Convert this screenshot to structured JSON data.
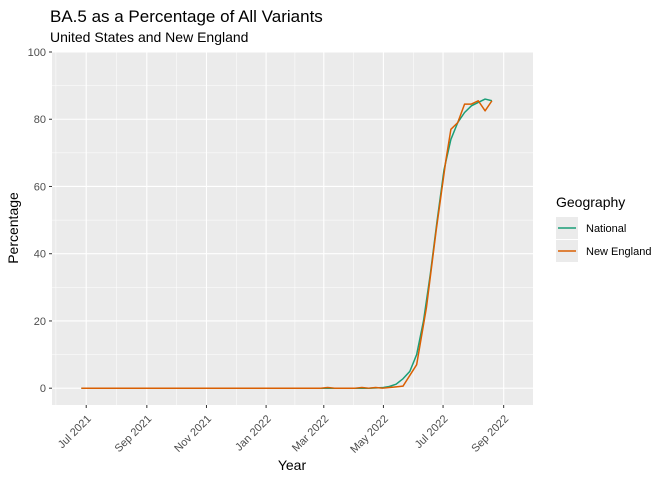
{
  "chart_data": {
    "type": "line",
    "title": "BA.5 as a Percentage of All Variants",
    "subtitle": "United States and New England",
    "xlabel": "Year",
    "ylabel": "Percentage",
    "x_range": [
      "2021-05-27",
      "2022-10-01"
    ],
    "ylim": [
      -5,
      100
    ],
    "y_ticks": [
      0,
      20,
      40,
      60,
      80,
      100
    ],
    "x_ticks": [
      {
        "date": "2021-07-01",
        "label": "Jul 2021"
      },
      {
        "date": "2021-09-01",
        "label": "Sep 2021"
      },
      {
        "date": "2021-11-01",
        "label": "Nov 2021"
      },
      {
        "date": "2022-01-01",
        "label": "Jan 2022"
      },
      {
        "date": "2022-03-01",
        "label": "Mar 2022"
      },
      {
        "date": "2022-05-01",
        "label": "May 2022"
      },
      {
        "date": "2022-07-01",
        "label": "Jul 2022"
      },
      {
        "date": "2022-09-01",
        "label": "Sep 2022"
      }
    ],
    "grid": true,
    "legend": {
      "title": "Geography",
      "position": "right"
    },
    "series": [
      {
        "name": "National",
        "color": "#1b9e77",
        "points": [
          [
            "2021-06-26",
            0
          ],
          [
            "2021-08-01",
            0
          ],
          [
            "2021-10-01",
            0
          ],
          [
            "2021-12-01",
            0
          ],
          [
            "2022-02-01",
            0
          ],
          [
            "2022-03-26",
            0
          ],
          [
            "2022-04-16",
            0
          ],
          [
            "2022-05-01",
            0.2
          ],
          [
            "2022-05-07",
            0.5
          ],
          [
            "2022-05-14",
            1.2
          ],
          [
            "2022-05-21",
            2.8
          ],
          [
            "2022-05-28",
            5
          ],
          [
            "2022-06-04",
            10
          ],
          [
            "2022-06-11",
            20
          ],
          [
            "2022-06-18",
            34
          ],
          [
            "2022-06-25",
            50
          ],
          [
            "2022-07-02",
            65
          ],
          [
            "2022-07-09",
            74
          ],
          [
            "2022-07-16",
            79
          ],
          [
            "2022-07-23",
            82
          ],
          [
            "2022-07-30",
            84
          ],
          [
            "2022-08-06",
            85
          ],
          [
            "2022-08-13",
            86
          ],
          [
            "2022-08-20",
            85.5
          ]
        ]
      },
      {
        "name": "New England",
        "color": "#d95f02",
        "points": [
          [
            "2021-06-26",
            0
          ],
          [
            "2021-08-01",
            0
          ],
          [
            "2021-10-01",
            0
          ],
          [
            "2021-12-01",
            0
          ],
          [
            "2022-02-01",
            0
          ],
          [
            "2022-02-26",
            0
          ],
          [
            "2022-03-05",
            0.2
          ],
          [
            "2022-03-12",
            0
          ],
          [
            "2022-04-02",
            0
          ],
          [
            "2022-04-09",
            0.2
          ],
          [
            "2022-04-16",
            0
          ],
          [
            "2022-04-23",
            0.2
          ],
          [
            "2022-04-30",
            0
          ],
          [
            "2022-05-07",
            0.2
          ],
          [
            "2022-05-14",
            0.4
          ],
          [
            "2022-05-21",
            0.6
          ],
          [
            "2022-06-04",
            7
          ],
          [
            "2022-06-14",
            24
          ],
          [
            "2022-06-24",
            47
          ],
          [
            "2022-07-04",
            68
          ],
          [
            "2022-07-09",
            77
          ],
          [
            "2022-07-16",
            79
          ],
          [
            "2022-07-23",
            84.5
          ],
          [
            "2022-07-30",
            84.5
          ],
          [
            "2022-08-06",
            85.5
          ],
          [
            "2022-08-13",
            82.5
          ],
          [
            "2022-08-20",
            85.5
          ]
        ]
      }
    ]
  }
}
